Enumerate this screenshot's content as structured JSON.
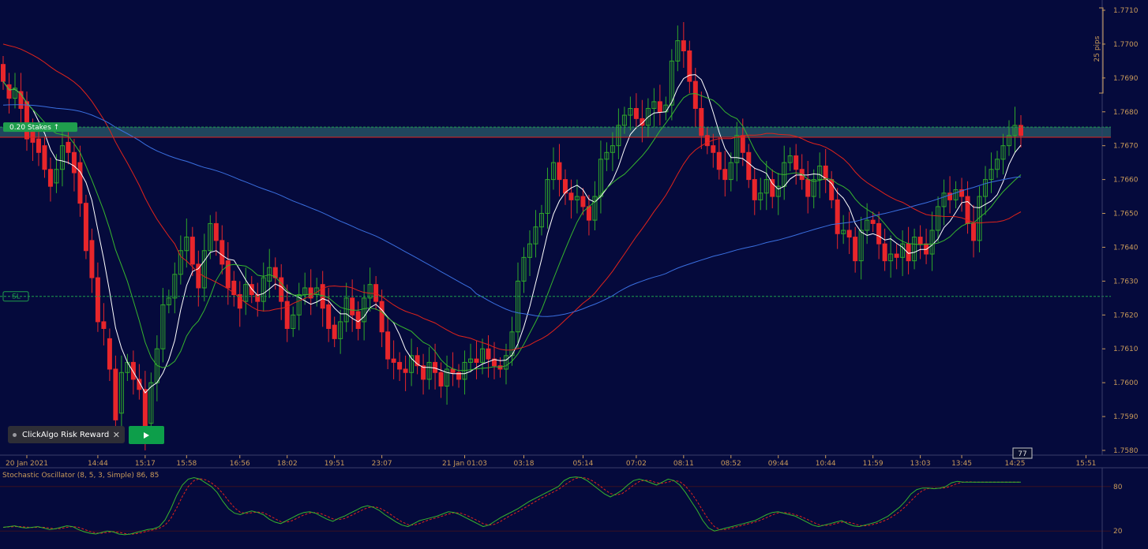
{
  "chart_data": {
    "type": "candlestick",
    "instrument_price_axis": {
      "min": 1.758,
      "max": 1.771,
      "tick_labels": [
        "1.7710",
        "1.7700",
        "1.7690",
        "1.7680",
        "1.7670",
        "1.7660",
        "1.7650",
        "1.7640",
        "1.7630",
        "1.7620",
        "1.7610",
        "1.7600",
        "1.7590",
        "1.7580"
      ],
      "tick_values": [
        1.771,
        1.77,
        1.769,
        1.768,
        1.767,
        1.766,
        1.765,
        1.764,
        1.763,
        1.762,
        1.761,
        1.76,
        1.759,
        1.758
      ]
    },
    "time_axis_labels": [
      "20 Jan 2021",
      "14:44",
      "15:17",
      "15:58",
      "16:56",
      "18:02",
      "19:51",
      "23:07",
      "21 Jan 01:03",
      "03:18",
      "05:14",
      "07:02",
      "08:11",
      "08:52",
      "09:44",
      "10:44",
      "11:59",
      "13:03",
      "13:45",
      "14:25",
      "15:51"
    ],
    "time_axis_label_bar": [
      4,
      16,
      24,
      31,
      40,
      48,
      56,
      64,
      78,
      88,
      98,
      107,
      115,
      123,
      131,
      139,
      147,
      155,
      162,
      171,
      183
    ],
    "candles": [
      [
        1.7694,
        1.7689
      ],
      [
        1.7688,
        1.7684
      ],
      [
        1.7684,
        1.7687
      ],
      [
        1.7686,
        1.7681
      ],
      [
        1.7683,
        1.7672
      ],
      [
        1.7674,
        1.7671
      ],
      [
        1.7672,
        1.7668
      ],
      [
        1.767,
        1.7663
      ],
      [
        1.7663,
        1.7658
      ],
      [
        1.7659,
        1.7663
      ],
      [
        1.7663,
        1.767
      ],
      [
        1.7671,
        1.7668
      ],
      [
        1.7668,
        1.7662
      ],
      [
        1.7665,
        1.7653
      ],
      [
        1.7653,
        1.7639
      ],
      [
        1.7642,
        1.7631
      ],
      [
        1.7631,
        1.7618
      ],
      [
        1.7618,
        1.7616
      ],
      [
        1.7613,
        1.7604
      ],
      [
        1.7604,
        1.7589
      ],
      [
        1.7591,
        1.7603
      ],
      [
        1.7603,
        1.7606
      ],
      [
        1.7606,
        1.7601
      ],
      [
        1.7601,
        1.7598
      ],
      [
        1.7598,
        1.7585
      ],
      [
        1.7588,
        1.76
      ],
      [
        1.76,
        1.761
      ],
      [
        1.761,
        1.7623
      ],
      [
        1.7623,
        1.7625
      ],
      [
        1.7625,
        1.7632
      ],
      [
        1.7632,
        1.7639
      ],
      [
        1.7639,
        1.7643
      ],
      [
        1.7643,
        1.7635
      ],
      [
        1.7635,
        1.7628
      ],
      [
        1.7628,
        1.7639
      ],
      [
        1.7639,
        1.7647
      ],
      [
        1.7647,
        1.7642
      ],
      [
        1.7642,
        1.7635
      ],
      [
        1.7636,
        1.7628
      ],
      [
        1.763,
        1.7626
      ],
      [
        1.7626,
        1.7622
      ],
      [
        1.7624,
        1.7629
      ],
      [
        1.7629,
        1.7626
      ],
      [
        1.7626,
        1.7624
      ],
      [
        1.7624,
        1.7631
      ],
      [
        1.763,
        1.7634
      ],
      [
        1.7634,
        1.7631
      ],
      [
        1.7631,
        1.7624
      ],
      [
        1.7624,
        1.7616
      ],
      [
        1.7616,
        1.762
      ],
      [
        1.762,
        1.7626
      ],
      [
        1.7626,
        1.7628
      ],
      [
        1.7628,
        1.7625
      ],
      [
        1.7626,
        1.7628
      ],
      [
        1.7629,
        1.7622
      ],
      [
        1.7623,
        1.7616
      ],
      [
        1.7617,
        1.7613
      ],
      [
        1.7613,
        1.7618
      ],
      [
        1.7618,
        1.7625
      ],
      [
        1.7625,
        1.762
      ],
      [
        1.7621,
        1.7616
      ],
      [
        1.7618,
        1.7625
      ],
      [
        1.7625,
        1.7629
      ],
      [
        1.7629,
        1.7624
      ],
      [
        1.7624,
        1.7615
      ],
      [
        1.7615,
        1.7607
      ],
      [
        1.7607,
        1.7606
      ],
      [
        1.7606,
        1.7604
      ],
      [
        1.7604,
        1.7603
      ],
      [
        1.7603,
        1.7608
      ],
      [
        1.7608,
        1.7605
      ],
      [
        1.7605,
        1.7601
      ],
      [
        1.7601,
        1.7606
      ],
      [
        1.7606,
        1.7603
      ],
      [
        1.7603,
        1.7599
      ],
      [
        1.7599,
        1.7604
      ],
      [
        1.7604,
        1.7603
      ],
      [
        1.7603,
        1.7601
      ],
      [
        1.7601,
        1.7606
      ],
      [
        1.7606,
        1.7607
      ],
      [
        1.7607,
        1.7606
      ],
      [
        1.7606,
        1.761
      ],
      [
        1.761,
        1.7607
      ],
      [
        1.7607,
        1.7605
      ],
      [
        1.7605,
        1.7604
      ],
      [
        1.7604,
        1.7608
      ],
      [
        1.7608,
        1.7615
      ],
      [
        1.7615,
        1.763
      ],
      [
        1.763,
        1.7637
      ],
      [
        1.7637,
        1.7641
      ],
      [
        1.7641,
        1.7646
      ],
      [
        1.7646,
        1.765
      ],
      [
        1.765,
        1.766
      ],
      [
        1.766,
        1.7665
      ],
      [
        1.7665,
        1.766
      ],
      [
        1.766,
        1.7656
      ],
      [
        1.7656,
        1.7654
      ],
      [
        1.7654,
        1.7655
      ],
      [
        1.7655,
        1.7652
      ],
      [
        1.7652,
        1.7648
      ],
      [
        1.7648,
        1.7655
      ],
      [
        1.7655,
        1.7666
      ],
      [
        1.7666,
        1.7668
      ],
      [
        1.7668,
        1.767
      ],
      [
        1.767,
        1.7676
      ],
      [
        1.7676,
        1.7679
      ],
      [
        1.7679,
        1.7681
      ],
      [
        1.7681,
        1.7678
      ],
      [
        1.7678,
        1.7676
      ],
      [
        1.7676,
        1.7681
      ],
      [
        1.7681,
        1.7683
      ],
      [
        1.7683,
        1.768
      ],
      [
        1.768,
        1.7682
      ],
      [
        1.7682,
        1.7695
      ],
      [
        1.7695,
        1.7701
      ],
      [
        1.7701,
        1.7698
      ],
      [
        1.7698,
        1.7689
      ],
      [
        1.7689,
        1.7681
      ],
      [
        1.7681,
        1.7673
      ],
      [
        1.7673,
        1.767
      ],
      [
        1.767,
        1.7668
      ],
      [
        1.7668,
        1.7663
      ],
      [
        1.7663,
        1.766
      ],
      [
        1.766,
        1.7665
      ],
      [
        1.7665,
        1.7673
      ],
      [
        1.7673,
        1.7668
      ],
      [
        1.7668,
        1.766
      ],
      [
        1.766,
        1.7654
      ],
      [
        1.7654,
        1.7656
      ],
      [
        1.7656,
        1.766
      ],
      [
        1.766,
        1.7655
      ],
      [
        1.7655,
        1.7658
      ],
      [
        1.7658,
        1.7665
      ],
      [
        1.7665,
        1.7667
      ],
      [
        1.7667,
        1.7663
      ],
      [
        1.7663,
        1.766
      ],
      [
        1.766,
        1.7655
      ],
      [
        1.7655,
        1.766
      ],
      [
        1.766,
        1.7664
      ],
      [
        1.7664,
        1.766
      ],
      [
        1.766,
        1.7654
      ],
      [
        1.7654,
        1.7644
      ],
      [
        1.7644,
        1.7645
      ],
      [
        1.7645,
        1.7643
      ],
      [
        1.7643,
        1.7636
      ],
      [
        1.7636,
        1.7645
      ],
      [
        1.7645,
        1.7648
      ],
      [
        1.7648,
        1.7647
      ],
      [
        1.7647,
        1.7641
      ],
      [
        1.7641,
        1.7636
      ],
      [
        1.7636,
        1.7638
      ],
      [
        1.7638,
        1.7637
      ],
      [
        1.7637,
        1.7641
      ],
      [
        1.7641,
        1.7636
      ],
      [
        1.7636,
        1.7643
      ],
      [
        1.7643,
        1.7641
      ],
      [
        1.7641,
        1.7638
      ],
      [
        1.7638,
        1.7645
      ],
      [
        1.7645,
        1.7652
      ],
      [
        1.7652,
        1.7656
      ],
      [
        1.7656,
        1.7654
      ],
      [
        1.7654,
        1.7657
      ],
      [
        1.7657,
        1.7655
      ],
      [
        1.7655,
        1.7647
      ],
      [
        1.7647,
        1.7642
      ],
      [
        1.7642,
        1.7655
      ],
      [
        1.7655,
        1.766
      ],
      [
        1.766,
        1.7663
      ],
      [
        1.7663,
        1.7666
      ],
      [
        1.7666,
        1.767
      ],
      [
        1.767,
        1.7673
      ],
      [
        1.7673,
        1.7676
      ],
      [
        1.7676,
        1.7673
      ]
    ],
    "overlays": [
      {
        "type": "moving-average",
        "color": "#ffffff",
        "period_hint": "fast"
      },
      {
        "type": "moving-average",
        "color": "#36b52e",
        "period_hint": "mid"
      },
      {
        "type": "moving-average",
        "color": "#e0231b",
        "period_hint": "slow"
      },
      {
        "type": "moving-average",
        "color": "#3a6fe0",
        "period_hint": "long"
      }
    ],
    "horizontal_lines": [
      {
        "label": "0.20 Stakes ↑",
        "price": 1.76755,
        "color": "#1f9e4d"
      },
      {
        "label": "",
        "price": 1.76725,
        "color": "#e0231b"
      },
      {
        "label": "SL",
        "price": 1.76255,
        "color": "#1f9e4d"
      }
    ],
    "range_marker": {
      "label": "25 pips"
    },
    "current_bar_badge": "77",
    "oscillator": {
      "title": "Stochastic Oscillator (8, 5, 3, Simple) 86, 85",
      "levels": [
        80,
        20
      ],
      "level_labels": [
        "80",
        "20"
      ],
      "k_color": "#36b52e",
      "d_color": "#e0231b",
      "k": [
        25,
        26,
        27,
        25,
        24,
        25,
        26,
        24,
        22,
        23,
        25,
        27,
        26,
        22,
        19,
        17,
        16,
        18,
        20,
        19,
        16,
        15,
        16,
        18,
        20,
        22,
        23,
        26,
        35,
        50,
        68,
        82,
        90,
        92,
        90,
        85,
        80,
        72,
        60,
        50,
        44,
        42,
        45,
        47,
        45,
        42,
        36,
        32,
        30,
        34,
        38,
        42,
        45,
        46,
        44,
        40,
        36,
        33,
        37,
        40,
        44,
        48,
        52,
        54,
        52,
        48,
        42,
        37,
        32,
        28,
        26,
        30,
        34,
        36,
        38,
        40,
        43,
        46,
        45,
        42,
        38,
        34,
        30,
        26,
        28,
        33,
        38,
        42,
        46,
        50,
        55,
        60,
        64,
        68,
        72,
        76,
        80,
        88,
        92,
        93,
        92,
        88,
        82,
        76,
        70,
        66,
        70,
        75,
        82,
        88,
        90,
        88,
        85,
        82,
        86,
        90,
        88,
        82,
        72,
        60,
        48,
        34,
        24,
        20,
        22,
        24,
        26,
        28,
        30,
        32,
        34,
        38,
        42,
        45,
        46,
        44,
        42,
        40,
        36,
        32,
        28,
        26,
        28,
        30,
        32,
        34,
        30,
        27,
        26,
        28,
        30,
        32,
        36,
        40,
        46,
        52,
        60,
        70,
        76,
        78,
        78,
        77,
        78,
        80,
        85,
        87,
        86,
        86,
        86,
        86,
        86,
        86,
        86,
        86,
        86,
        86,
        86
      ]
    }
  },
  "ui": {
    "algo_chip_label": "ClickAlgo Risk Reward...",
    "close_glyph": "✕",
    "play_icon": "play-icon"
  }
}
